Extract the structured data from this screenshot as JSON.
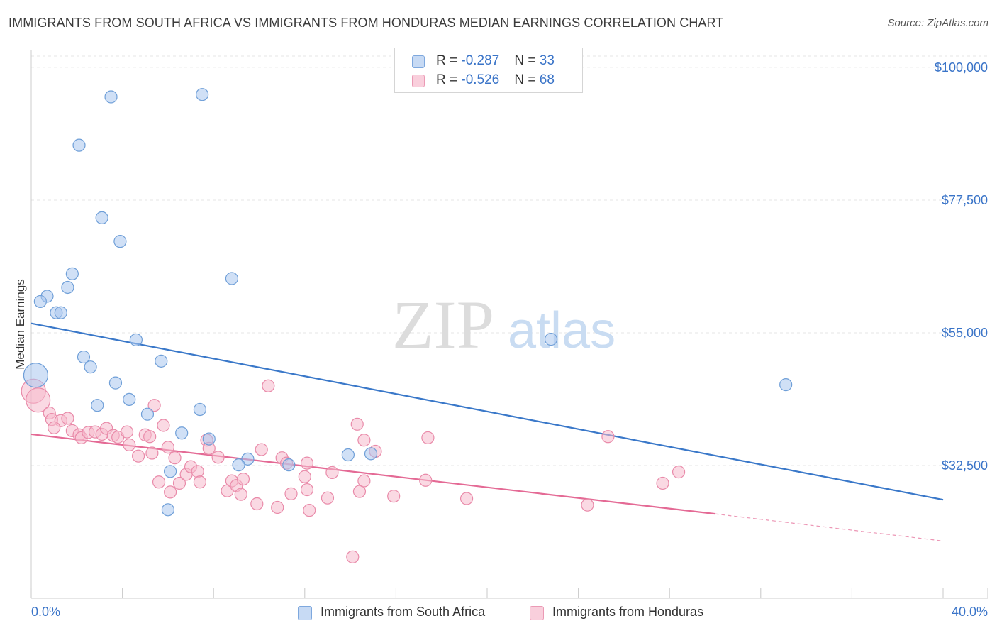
{
  "header": {
    "title": "IMMIGRANTS FROM SOUTH AFRICA VS IMMIGRANTS FROM HONDURAS MEDIAN EARNINGS CORRELATION CHART",
    "source": "Source: ZipAtlas.com"
  },
  "watermark": {
    "zip": "ZIP",
    "atlas": "atlas"
  },
  "legend": {
    "rows": [
      {
        "r_label": "R = ",
        "r_value": "-0.287",
        "n_label": "N = ",
        "n_value": "33"
      },
      {
        "r_label": "R = ",
        "r_value": "-0.526",
        "n_label": "N = ",
        "n_value": "68"
      }
    ],
    "bottom": [
      "Immigrants from South Africa",
      "Immigrants from Honduras"
    ]
  },
  "colors": {
    "blue_fill": "#a9c7ee",
    "blue_stroke": "#6f9fd8",
    "blue_line": "#3a78c9",
    "pink_fill": "#f6b9cc",
    "pink_stroke": "#e98aa9",
    "pink_line": "#e46a95",
    "axis_text": "#3a74c8",
    "grid": "#e6e6e6"
  },
  "chart_data": {
    "type": "scatter",
    "title": "IMMIGRANTS FROM SOUTH AFRICA VS IMMIGRANTS FROM HONDURAS MEDIAN EARNINGS CORRELATION CHART",
    "xlabel": "",
    "ylabel": "Median Earnings",
    "xlim": [
      0,
      40
    ],
    "ylim": [
      10000,
      103000
    ],
    "x_tick_labels": [
      "0.0%",
      "40.0%"
    ],
    "y_ticks": [
      32500,
      55000,
      77500,
      100000
    ],
    "y_tick_labels": [
      "$32,500",
      "$55,000",
      "$77,500",
      "$100,000"
    ],
    "series": [
      {
        "name": "Immigrants from South Africa",
        "r": -0.287,
        "n": 33,
        "points": [
          [
            0.2,
            47800,
            "large"
          ],
          [
            3.5,
            95000
          ],
          [
            7.5,
            95400
          ],
          [
            2.1,
            86800
          ],
          [
            3.1,
            74500
          ],
          [
            3.9,
            70500
          ],
          [
            1.8,
            65000
          ],
          [
            1.6,
            62700
          ],
          [
            0.7,
            61200
          ],
          [
            0.4,
            60300
          ],
          [
            1.1,
            58400
          ],
          [
            1.3,
            58400
          ],
          [
            8.8,
            64200
          ],
          [
            4.6,
            53800
          ],
          [
            22.8,
            53900
          ],
          [
            2.3,
            50900
          ],
          [
            5.7,
            50200
          ],
          [
            2.6,
            49200
          ],
          [
            3.7,
            46500
          ],
          [
            33.1,
            46200
          ],
          [
            4.3,
            43700
          ],
          [
            2.9,
            42700
          ],
          [
            7.4,
            42000
          ],
          [
            5.1,
            41200
          ],
          [
            6.6,
            38000
          ],
          [
            7.8,
            37000
          ],
          [
            9.5,
            33600
          ],
          [
            9.1,
            32600
          ],
          [
            11.3,
            32600
          ],
          [
            13.9,
            34300
          ],
          [
            14.9,
            34500
          ],
          [
            6.1,
            31500
          ],
          [
            6.0,
            25000
          ]
        ],
        "trendline": {
          "x": [
            0,
            40
          ],
          "y": [
            56600,
            26700
          ]
        }
      },
      {
        "name": "Immigrants from Honduras",
        "r": -0.526,
        "n": 68,
        "points": [
          [
            0.1,
            45100,
            "large"
          ],
          [
            0.3,
            43600,
            "large"
          ],
          [
            0.8,
            41400
          ],
          [
            0.9,
            40300
          ],
          [
            1.3,
            40100
          ],
          [
            1.6,
            40500
          ],
          [
            1.0,
            38900
          ],
          [
            1.8,
            38400
          ],
          [
            2.1,
            37700
          ],
          [
            2.2,
            37200
          ],
          [
            2.5,
            38100
          ],
          [
            2.8,
            38200
          ],
          [
            3.1,
            37800
          ],
          [
            3.3,
            38800
          ],
          [
            3.6,
            37600
          ],
          [
            3.8,
            37300
          ],
          [
            4.2,
            38200
          ],
          [
            4.3,
            36000
          ],
          [
            4.7,
            34100
          ],
          [
            5.0,
            37700
          ],
          [
            5.2,
            37400
          ],
          [
            5.3,
            34600
          ],
          [
            5.4,
            42700
          ],
          [
            5.8,
            39300
          ],
          [
            6.0,
            35600
          ],
          [
            6.3,
            33800
          ],
          [
            5.6,
            29700
          ],
          [
            6.5,
            29500
          ],
          [
            6.1,
            28000
          ],
          [
            6.8,
            31000
          ],
          [
            7.0,
            32300
          ],
          [
            7.3,
            31500
          ],
          [
            7.4,
            29700
          ],
          [
            7.7,
            36800
          ],
          [
            7.8,
            35400
          ],
          [
            8.2,
            33900
          ],
          [
            8.6,
            28200
          ],
          [
            8.8,
            29900
          ],
          [
            9.0,
            29100
          ],
          [
            9.2,
            27600
          ],
          [
            9.3,
            30200
          ],
          [
            9.9,
            26000
          ],
          [
            10.1,
            35200
          ],
          [
            10.4,
            46000
          ],
          [
            10.8,
            25400
          ],
          [
            11.0,
            33800
          ],
          [
            11.2,
            32900
          ],
          [
            11.4,
            27700
          ],
          [
            12.0,
            30600
          ],
          [
            12.1,
            32900
          ],
          [
            12.2,
            24900
          ],
          [
            13.0,
            27000
          ],
          [
            13.2,
            31300
          ],
          [
            14.3,
            39500
          ],
          [
            14.4,
            28100
          ],
          [
            14.6,
            36800
          ],
          [
            14.1,
            17000
          ],
          [
            15.1,
            34900
          ],
          [
            15.9,
            27300
          ],
          [
            17.3,
            30000
          ],
          [
            17.4,
            37200
          ],
          [
            19.1,
            26900
          ],
          [
            24.4,
            25800
          ],
          [
            25.3,
            37400
          ],
          [
            27.7,
            29500
          ],
          [
            28.4,
            31400
          ],
          [
            14.6,
            29900
          ],
          [
            12.1,
            28400
          ]
        ],
        "trendline": {
          "x": [
            0,
            30
          ],
          "y": [
            37800,
            24300
          ]
        },
        "trendline_dashed": {
          "x": [
            30,
            40
          ],
          "y": [
            24300,
            19700
          ]
        }
      }
    ]
  }
}
